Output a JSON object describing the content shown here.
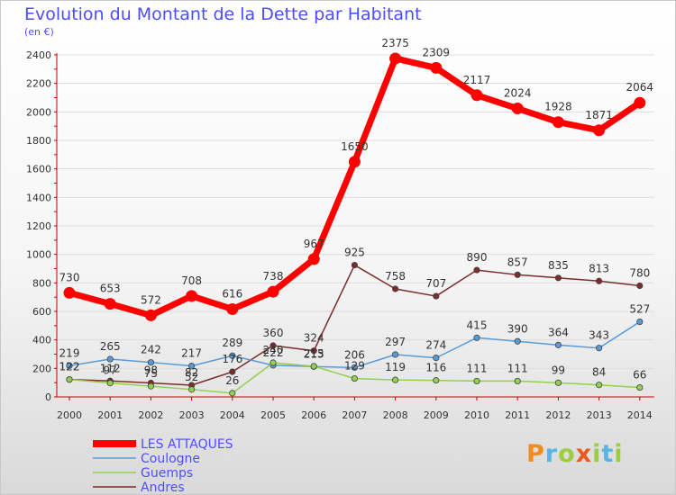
{
  "title": "Evolution du Montant de la Dette par Habitant",
  "unit_label": "(en €)",
  "logo_text": "Proxiti",
  "colors": {
    "title": "#4d4dff",
    "grid": "#dddddd",
    "axis": "#cc0000",
    "tick_text": "#333333"
  },
  "chart_data": {
    "type": "line",
    "x": [
      "2000",
      "2001",
      "2002",
      "2003",
      "2004",
      "2005",
      "2006",
      "2007",
      "2008",
      "2009",
      "2010",
      "2011",
      "2012",
      "2013",
      "2014"
    ],
    "ylim": [
      0,
      2400
    ],
    "yticks": [
      0,
      200,
      400,
      600,
      800,
      1000,
      1200,
      1400,
      1600,
      1800,
      2000,
      2200,
      2400
    ],
    "grid": true,
    "legend_position": "bottom-left",
    "series": [
      {
        "name": "LES ATTAQUES",
        "color": "#ff0000",
        "values": [
          730,
          653,
          572,
          708,
          616,
          738,
          967,
          1650,
          2375,
          2309,
          2117,
          2024,
          1928,
          1871,
          2064
        ]
      },
      {
        "name": "Coulogne",
        "color": "#5b9bd5",
        "values": [
          219,
          265,
          242,
          217,
          289,
          222,
          213,
          206,
          297,
          274,
          415,
          390,
          364,
          343,
          527
        ]
      },
      {
        "name": "Guemps",
        "color": "#92d050",
        "values": [
          122,
          97,
          75,
          52,
          26,
          240,
          215,
          129,
          119,
          116,
          111,
          111,
          99,
          84,
          66
        ]
      },
      {
        "name": "Andres",
        "color": "#7b2c2c",
        "values": [
          122,
          112,
          98,
          82,
          176,
          360,
          324,
          925,
          758,
          707,
          890,
          857,
          835,
          813,
          780
        ]
      }
    ],
    "labels": [
      [
        "730",
        "653",
        "572",
        "708",
        "616",
        "738",
        "967",
        "1650",
        "2375",
        "2309",
        "2117",
        "2024",
        "1928",
        "1871",
        "2064"
      ],
      [
        "219",
        "265",
        "242",
        "217",
        "289",
        "222",
        "213",
        "206",
        "297",
        "274",
        "415",
        "390",
        "364",
        "343",
        "527"
      ],
      [
        "122",
        "97",
        "75",
        "52",
        "26",
        "240",
        "215",
        "129",
        "119",
        "116",
        "111",
        "111",
        "99",
        "84",
        "66"
      ],
      [
        "122",
        "112",
        "98",
        "82",
        "176",
        "360",
        "324",
        "925",
        "758",
        "707",
        "890",
        "857",
        "835",
        "813",
        "780"
      ]
    ]
  }
}
